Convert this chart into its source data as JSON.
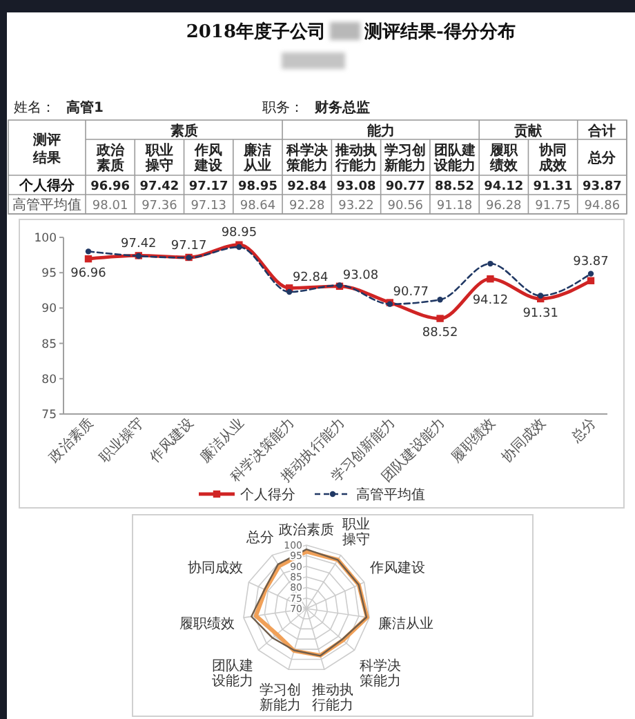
{
  "chart_data": [
    {
      "type": "heatmap",
      "title": "2018年度子公司 测评结果-得分分布",
      "annotations": [
        "姓名：",
        "高管1",
        "职务：",
        "财务总监",
        "测评结果",
        "素质",
        "能力",
        "贡献",
        "合计"
      ],
      "categories": [
        "政治素质",
        "职业操守",
        "作风建设",
        "廉洁从业",
        "科学决策能力",
        "推动执行能力",
        "学习创新能力",
        "团队建设能力",
        "履职绩效",
        "协同成效",
        "总分"
      ],
      "y_categories": [
        "个人得分",
        "高管平均值"
      ],
      "cells": [
        [
          96.96,
          97.42,
          97.17,
          98.95,
          92.84,
          93.08,
          90.77,
          88.52,
          94.12,
          91.31,
          93.87
        ],
        [
          98.01,
          97.36,
          97.13,
          98.64,
          92.28,
          93.22,
          90.56,
          91.18,
          96.28,
          91.75,
          94.86
        ]
      ],
      "data_labels": true
    },
    {
      "type": "line",
      "categories": [
        "政治素质",
        "职业操守",
        "作风建设",
        "廉洁从业",
        "科学决策能力",
        "推动执行能力",
        "学习创新能力",
        "团队建设能力",
        "履职绩效",
        "协同成效",
        "总分"
      ],
      "ylim": [
        75,
        100
      ],
      "yticks": [
        75,
        80,
        85,
        90,
        95,
        100
      ],
      "series": [
        {
          "name": "个人得分",
          "color": "#d02424",
          "values": [
            96.96,
            97.42,
            97.17,
            98.95,
            92.84,
            93.08,
            90.77,
            88.52,
            94.12,
            91.31,
            93.87
          ],
          "value_labels": [
            "96.96",
            "97.42",
            "97.17",
            "98.95",
            "92.84",
            "93.08",
            "90.77",
            "88.52",
            "94.12",
            "91.31",
            "93.87"
          ],
          "marker": "square",
          "line_style": "solid"
        },
        {
          "name": "高管平均值",
          "color": "#203864",
          "values": [
            98.01,
            97.36,
            97.13,
            98.64,
            92.28,
            93.22,
            90.56,
            91.18,
            96.28,
            91.75,
            94.86
          ],
          "marker": "circle",
          "line_style": "dashed"
        }
      ],
      "legend": "bottom"
    },
    {
      "type": "radar",
      "categories": [
        "政治素质",
        "职业操守",
        "作风建设",
        "廉洁从业",
        "科学决策能力",
        "推动执行能力",
        "学习创新能力",
        "团队建设能力",
        "履职绩效",
        "协同成效",
        "总分"
      ],
      "ylim": [
        70,
        100
      ],
      "yticks": [
        70,
        75,
        80,
        85,
        90,
        95,
        100
      ],
      "series": [
        {
          "color": "#f0a058",
          "values": [
            96.96,
            97.42,
            97.17,
            98.95,
            92.84,
            93.08,
            90.77,
            88.52,
            94.12,
            91.31,
            93.87
          ]
        },
        {
          "color": "#6e5c4a",
          "values": [
            98.01,
            97.36,
            97.13,
            98.64,
            92.28,
            93.22,
            90.56,
            91.18,
            96.28,
            91.75,
            94.86
          ]
        }
      ],
      "grid": true
    }
  ]
}
